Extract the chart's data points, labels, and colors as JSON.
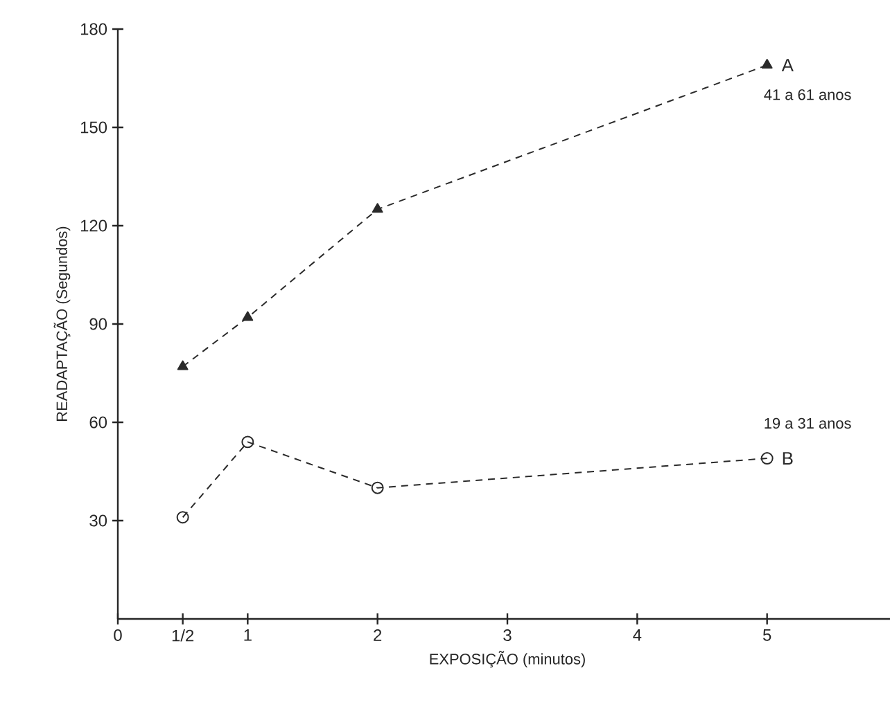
{
  "chart_data": {
    "type": "line",
    "xlabel": "EXPOSIÇÃO (minutos)",
    "ylabel": "READAPTAÇÃO (Segundos)",
    "x": [
      0.5,
      1,
      2,
      5
    ],
    "series": [
      {
        "name": "A",
        "color": "#2a2a2a",
        "marker": "triangle",
        "values": [
          77,
          92,
          125,
          169
        ]
      },
      {
        "name": "B",
        "color": "#2a2a2a",
        "marker": "circle",
        "values": [
          31,
          54,
          40,
          49
        ]
      }
    ],
    "annotations": [
      "41 a 61 anos",
      "19 a 31 anos"
    ],
    "xlim": [
      0,
      6
    ],
    "ylim": [
      0,
      180
    ],
    "xticks": [
      0,
      {
        "value": 0.5,
        "label": "1/2"
      },
      1,
      2,
      3,
      4,
      5
    ],
    "yticks": [
      30,
      60,
      90,
      120,
      150,
      180
    ],
    "grid": false,
    "legend": false,
    "line_style": "dashed"
  }
}
